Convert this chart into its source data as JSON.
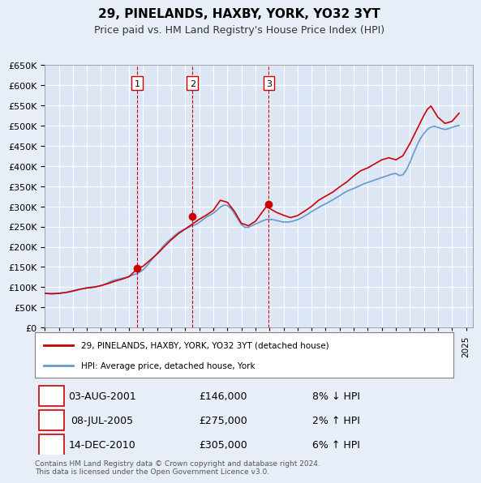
{
  "title": "29, PINELANDS, HAXBY, YORK, YO32 3YT",
  "subtitle": "Price paid vs. HM Land Registry's House Price Index (HPI)",
  "sale_dates": [
    "2001-08-03",
    "2005-07-08",
    "2010-12-14"
  ],
  "sale_prices": [
    146000,
    275000,
    305000
  ],
  "sale_labels": [
    "1",
    "2",
    "3"
  ],
  "sale_label_info": [
    {
      "label": "1",
      "date": "03-AUG-2001",
      "price": "£146,000",
      "hpi_pct": "8% ↓ HPI"
    },
    {
      "label": "2",
      "date": "08-JUL-2005",
      "price": "£275,000",
      "hpi_pct": "2% ↑ HPI"
    },
    {
      "label": "3",
      "date": "14-DEC-2010",
      "price": "£305,000",
      "hpi_pct": "6% ↑ HPI"
    }
  ],
  "property_line_color": "#cc0000",
  "hpi_line_color": "#6699cc",
  "background_color": "#e8eef8",
  "plot_bg_color": "#dce6f5",
  "grid_color": "#ffffff",
  "vline_color": "#cc0000",
  "sale_marker_color": "#cc0000",
  "legend_label_property": "29, PINELANDS, HAXBY, YORK, YO32 3YT (detached house)",
  "legend_label_hpi": "HPI: Average price, detached house, York",
  "ylabel": "",
  "ylim": [
    0,
    650000
  ],
  "ytick_step": 50000,
  "xmin": 1995.0,
  "xmax": 2025.5,
  "footnote": "Contains HM Land Registry data © Crown copyright and database right 2024.\nThis data is licensed under the Open Government Licence v3.0.",
  "hpi_data": {
    "years": [
      1995.0,
      1995.25,
      1995.5,
      1995.75,
      1996.0,
      1996.25,
      1996.5,
      1996.75,
      1997.0,
      1997.25,
      1997.5,
      1997.75,
      1998.0,
      1998.25,
      1998.5,
      1998.75,
      1999.0,
      1999.25,
      1999.5,
      1999.75,
      2000.0,
      2000.25,
      2000.5,
      2000.75,
      2001.0,
      2001.25,
      2001.5,
      2001.75,
      2002.0,
      2002.25,
      2002.5,
      2002.75,
      2003.0,
      2003.25,
      2003.5,
      2003.75,
      2004.0,
      2004.25,
      2004.5,
      2004.75,
      2005.0,
      2005.25,
      2005.5,
      2005.75,
      2006.0,
      2006.25,
      2006.5,
      2006.75,
      2007.0,
      2007.25,
      2007.5,
      2007.75,
      2008.0,
      2008.25,
      2008.5,
      2008.75,
      2009.0,
      2009.25,
      2009.5,
      2009.75,
      2010.0,
      2010.25,
      2010.5,
      2010.75,
      2011.0,
      2011.25,
      2011.5,
      2011.75,
      2012.0,
      2012.25,
      2012.5,
      2012.75,
      2013.0,
      2013.25,
      2013.5,
      2013.75,
      2014.0,
      2014.25,
      2014.5,
      2014.75,
      2015.0,
      2015.25,
      2015.5,
      2015.75,
      2016.0,
      2016.25,
      2016.5,
      2016.75,
      2017.0,
      2017.25,
      2017.5,
      2017.75,
      2018.0,
      2018.25,
      2018.5,
      2018.75,
      2019.0,
      2019.25,
      2019.5,
      2019.75,
      2020.0,
      2020.25,
      2020.5,
      2020.75,
      2021.0,
      2021.25,
      2021.5,
      2021.75,
      2022.0,
      2022.25,
      2022.5,
      2022.75,
      2023.0,
      2023.25,
      2023.5,
      2023.75,
      2024.0,
      2024.25,
      2024.5
    ],
    "values": [
      85000,
      84000,
      83500,
      84000,
      85000,
      86000,
      87000,
      88000,
      90000,
      92000,
      95000,
      97000,
      99000,
      100000,
      101000,
      102000,
      104000,
      107000,
      111000,
      115000,
      118000,
      120000,
      122000,
      124000,
      127000,
      130000,
      133000,
      137000,
      143000,
      152000,
      163000,
      174000,
      184000,
      194000,
      204000,
      213000,
      220000,
      228000,
      235000,
      240000,
      244000,
      248000,
      252000,
      255000,
      260000,
      267000,
      273000,
      278000,
      283000,
      290000,
      298000,
      303000,
      302000,
      295000,
      282000,
      268000,
      255000,
      248000,
      248000,
      252000,
      256000,
      260000,
      264000,
      267000,
      268000,
      267000,
      265000,
      263000,
      261000,
      261000,
      262000,
      264000,
      267000,
      271000,
      276000,
      281000,
      287000,
      292000,
      297000,
      302000,
      306000,
      311000,
      316000,
      321000,
      326000,
      332000,
      337000,
      341000,
      344000,
      348000,
      352000,
      356000,
      359000,
      362000,
      365000,
      368000,
      371000,
      374000,
      377000,
      380000,
      381000,
      376000,
      378000,
      390000,
      408000,
      430000,
      450000,
      468000,
      480000,
      490000,
      496000,
      498000,
      495000,
      492000,
      490000,
      492000,
      495000,
      498000,
      500000
    ]
  },
  "property_data": {
    "years": [
      1995.0,
      1995.5,
      1996.0,
      1996.5,
      1997.0,
      1997.5,
      1998.0,
      1998.5,
      1999.0,
      1999.5,
      2000.0,
      2000.5,
      2001.0,
      2001.6,
      2002.0,
      2002.5,
      2003.0,
      2003.5,
      2004.0,
      2004.5,
      2005.0,
      2005.5,
      2006.0,
      2006.5,
      2007.0,
      2007.5,
      2008.0,
      2008.5,
      2009.0,
      2009.5,
      2010.0,
      2010.9,
      2011.0,
      2011.5,
      2012.0,
      2012.5,
      2013.0,
      2013.5,
      2014.0,
      2014.5,
      2015.0,
      2015.5,
      2016.0,
      2016.5,
      2017.0,
      2017.5,
      2018.0,
      2018.5,
      2019.0,
      2019.5,
      2020.0,
      2020.5,
      2021.0,
      2021.5,
      2022.0,
      2022.25,
      2022.5,
      2023.0,
      2023.5,
      2024.0,
      2024.5
    ],
    "values": [
      85000,
      84000,
      85000,
      87000,
      91000,
      95000,
      98000,
      100000,
      104000,
      109000,
      115000,
      120000,
      126000,
      146000,
      152000,
      167000,
      182000,
      200000,
      217000,
      232000,
      244000,
      256000,
      268000,
      278000,
      290000,
      315000,
      310000,
      288000,
      258000,
      252000,
      263000,
      305000,
      295000,
      285000,
      278000,
      272000,
      277000,
      288000,
      300000,
      315000,
      325000,
      335000,
      348000,
      360000,
      375000,
      388000,
      395000,
      405000,
      415000,
      420000,
      415000,
      425000,
      455000,
      490000,
      525000,
      540000,
      548000,
      520000,
      505000,
      510000,
      530000
    ]
  }
}
